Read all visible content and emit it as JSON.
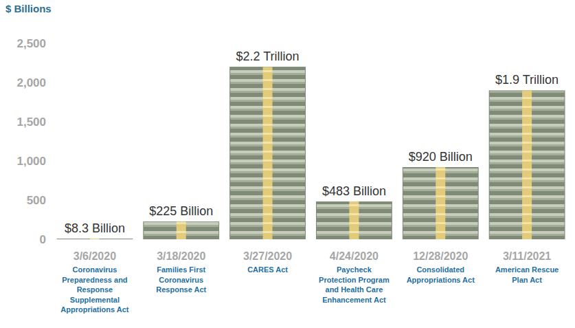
{
  "chart_data": {
    "type": "bar",
    "y_label": "$ Billions",
    "categories": [
      "3/6/2020",
      "3/18/2020",
      "3/27/2020",
      "4/24/2020",
      "12/28/2020",
      "3/11/2021"
    ],
    "act_names": [
      "Coronavirus Preparedness and Response Supplemental Appropriations Act",
      "Families First Coronavirus Response Act",
      "CARES Act",
      "Paycheck Protection Program and Health Care Enhancement Act",
      "Consolidated Appropriations Act",
      "American Rescue Plan Act"
    ],
    "values": [
      8.3,
      225,
      2200,
      483,
      920,
      1900
    ],
    "value_labels": [
      "$8.3 Billion",
      "$225 Billion",
      "$2.2 Trillion",
      "$483 Billion",
      "$920 Billion",
      "$1.9 Trillion"
    ],
    "data_labels": true,
    "color": "#8f9a84",
    "ylim": [
      0,
      2500
    ],
    "yticks": [
      0,
      500,
      {
        "value": 1000,
        "label": "1,000"
      },
      {
        "value": 1500,
        "label": "1,500"
      },
      {
        "value": 2000,
        "label": "2,000"
      },
      {
        "value": 2500,
        "label": "2,500"
      }
    ],
    "grid": false
  }
}
